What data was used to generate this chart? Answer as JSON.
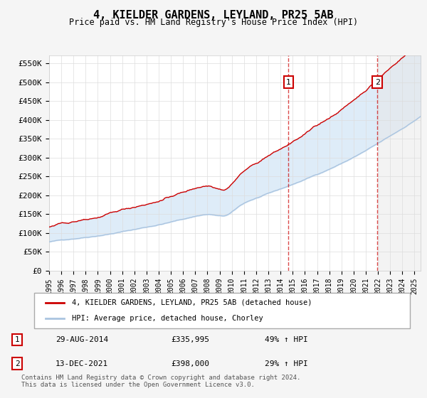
{
  "title": "4, KIELDER GARDENS, LEYLAND, PR25 5AB",
  "subtitle": "Price paid vs. HM Land Registry's House Price Index (HPI)",
  "line1_label": "4, KIELDER GARDENS, LEYLAND, PR25 5AB (detached house)",
  "line2_label": "HPI: Average price, detached house, Chorley",
  "line1_color": "#cc0000",
  "line2_color": "#aac4e0",
  "fill_color": "#d6e8f7",
  "annotation1": {
    "label": "1",
    "date": "29-AUG-2014",
    "price": "£335,995",
    "pct": "49% ↑ HPI",
    "x_year": 2014.66
  },
  "annotation2": {
    "label": "2",
    "date": "13-DEC-2021",
    "price": "£398,000",
    "pct": "29% ↑ HPI",
    "x_year": 2021.95
  },
  "ylabel_ticks": [
    "£0",
    "£50K",
    "£100K",
    "£150K",
    "£200K",
    "£250K",
    "£300K",
    "£350K",
    "£400K",
    "£450K",
    "£500K",
    "£550K"
  ],
  "ytick_values": [
    0,
    50000,
    100000,
    150000,
    200000,
    250000,
    300000,
    350000,
    400000,
    450000,
    500000,
    550000
  ],
  "xmin": 1995,
  "xmax": 2025.5,
  "ymin": 0,
  "ymax": 570000,
  "footer": "Contains HM Land Registry data © Crown copyright and database right 2024.\nThis data is licensed under the Open Government Licence v3.0.",
  "background_color": "#f0f4f8",
  "plot_bg_color": "#ffffff",
  "grid_color": "#dddddd"
}
